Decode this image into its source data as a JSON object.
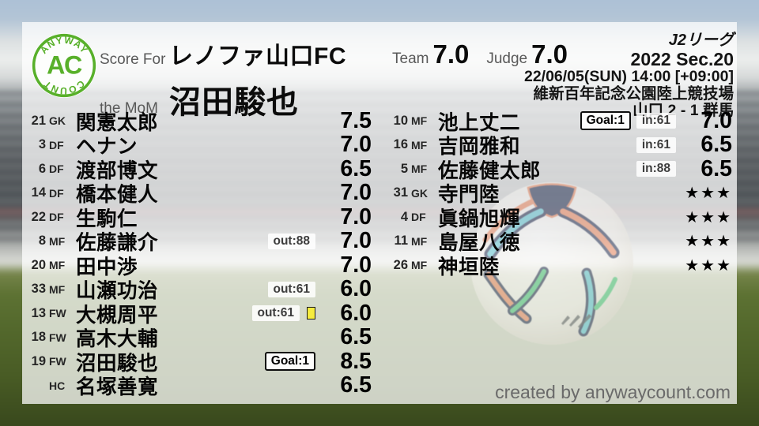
{
  "brand": {
    "logo_top": "ANYWAY",
    "logo_center": "AC",
    "logo_bottom": "COUNT",
    "logo_color": "#58b02a"
  },
  "header": {
    "score_for_label": "Score For",
    "team_name": "レノファ山口FC",
    "mom_label": "the MoM",
    "mom_name": "沼田駿也",
    "team_label": "Team",
    "team_score": "7.0",
    "judge_label": "Judge",
    "judge_score": "7.0"
  },
  "match_info": {
    "league": "J2リーグ",
    "season": "2022 Sec.20",
    "datetime": "22/06/05(SUN) 14:00 [+09:00]",
    "venue": "維新百年記念公園陸上競技場",
    "result": "山口 2 - 1 群馬"
  },
  "colors": {
    "accent_green": "#58b02a",
    "yellow_card": "#f6ec3d",
    "ball_navy": "#202c50",
    "ball_teal": "#5fc8d7",
    "ball_orange": "#ee8960",
    "ball_green": "#49c97e"
  },
  "players": {
    "left": [
      {
        "num": "21",
        "pos": "GK",
        "name": "関憲太郎",
        "badges": [],
        "yellow_card": false,
        "rating": "7.5"
      },
      {
        "num": "3",
        "pos": "DF",
        "name": "ヘナン",
        "badges": [],
        "yellow_card": false,
        "rating": "7.0"
      },
      {
        "num": "6",
        "pos": "DF",
        "name": "渡部博文",
        "badges": [],
        "yellow_card": false,
        "rating": "6.5"
      },
      {
        "num": "14",
        "pos": "DF",
        "name": "橋本健人",
        "badges": [],
        "yellow_card": false,
        "rating": "7.0"
      },
      {
        "num": "22",
        "pos": "DF",
        "name": "生駒仁",
        "badges": [],
        "yellow_card": false,
        "rating": "7.0"
      },
      {
        "num": "8",
        "pos": "MF",
        "name": "佐藤謙介",
        "badges": [
          {
            "type": "sub",
            "label": "out:88"
          }
        ],
        "yellow_card": false,
        "rating": "7.0"
      },
      {
        "num": "20",
        "pos": "MF",
        "name": "田中渉",
        "badges": [],
        "yellow_card": false,
        "rating": "7.0"
      },
      {
        "num": "33",
        "pos": "MF",
        "name": "山瀬功治",
        "badges": [
          {
            "type": "sub",
            "label": "out:61"
          }
        ],
        "yellow_card": false,
        "rating": "6.0"
      },
      {
        "num": "13",
        "pos": "FW",
        "name": "大槻周平",
        "badges": [
          {
            "type": "sub",
            "label": "out:61"
          }
        ],
        "yellow_card": true,
        "rating": "6.0"
      },
      {
        "num": "18",
        "pos": "FW",
        "name": "高木大輔",
        "badges": [],
        "yellow_card": false,
        "rating": "6.5"
      },
      {
        "num": "19",
        "pos": "FW",
        "name": "沼田駿也",
        "badges": [
          {
            "type": "goal",
            "label": "Goal:1"
          }
        ],
        "yellow_card": false,
        "rating": "8.5"
      },
      {
        "num": "",
        "pos": "HC",
        "name": "名塚善寛",
        "badges": [],
        "yellow_card": false,
        "rating": "6.5"
      }
    ],
    "right": [
      {
        "num": "10",
        "pos": "MF",
        "name": "池上丈二",
        "badges": [
          {
            "type": "goal",
            "label": "Goal:1"
          },
          {
            "type": "sub",
            "label": "in:61"
          }
        ],
        "yellow_card": false,
        "rating": "7.0"
      },
      {
        "num": "16",
        "pos": "MF",
        "name": "吉岡雅和",
        "badges": [
          {
            "type": "sub",
            "label": "in:61"
          }
        ],
        "yellow_card": false,
        "rating": "6.5"
      },
      {
        "num": "5",
        "pos": "MF",
        "name": "佐藤健太郎",
        "badges": [
          {
            "type": "sub",
            "label": "in:88"
          }
        ],
        "yellow_card": false,
        "rating": "6.5"
      },
      {
        "num": "31",
        "pos": "GK",
        "name": "寺門陸",
        "badges": [],
        "yellow_card": false,
        "rating": "★★★"
      },
      {
        "num": "4",
        "pos": "DF",
        "name": "眞鍋旭輝",
        "badges": [],
        "yellow_card": false,
        "rating": "★★★"
      },
      {
        "num": "11",
        "pos": "MF",
        "name": "島屋八徳",
        "badges": [],
        "yellow_card": false,
        "rating": "★★★"
      },
      {
        "num": "26",
        "pos": "MF",
        "name": "神垣陸",
        "badges": [],
        "yellow_card": false,
        "rating": "★★★"
      }
    ]
  },
  "footer": {
    "credit": "created by anywaycount.com"
  }
}
